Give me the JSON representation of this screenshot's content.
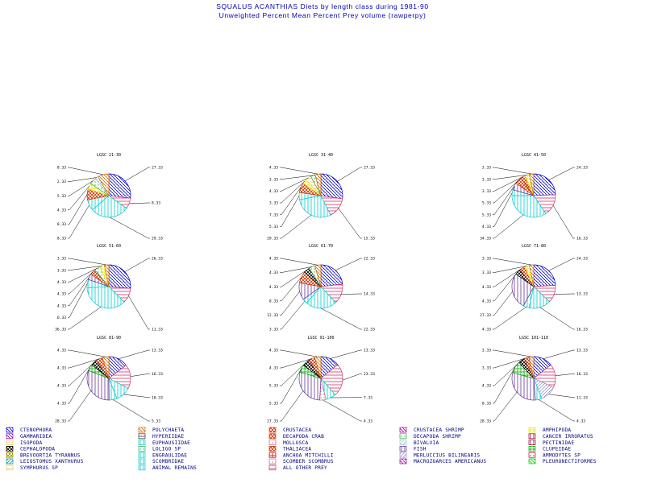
{
  "title": "SQUALUS ACANTHIAS Diets by length class during 1981-90",
  "subtitle": "Unweighted Percent Mean Percent Prey  volume (rawperpy)",
  "legend": [
    {
      "name": "CTENOPHORA",
      "color": "#0000cc"
    },
    {
      "name": "POLYCHAETA",
      "color": "#cc6600"
    },
    {
      "name": "CRUSTACEA",
      "color": "#cc3300"
    },
    {
      "name": "CRUSTACEA SHRIMP",
      "color": "#990099"
    },
    {
      "name": "AMPHIPODA",
      "color": "#e6e600"
    },
    {
      "name": "GAMMARIDEA",
      "color": "#990099"
    },
    {
      "name": "HYPERIIDAE",
      "color": "#333333"
    },
    {
      "name": "DECAPODA CRAB",
      "color": "#cc3300"
    },
    {
      "name": "DECAPODA SHRIMP",
      "color": "#33aa33"
    },
    {
      "name": "CANCER IRRORATUS",
      "color": "#990033"
    },
    {
      "name": "ISOPODA",
      "color": "#e6cc66"
    },
    {
      "name": "EUPHAUSIIDAE",
      "color": "#00cccc"
    },
    {
      "name": "MOLLUSCA",
      "color": "#cc6699"
    },
    {
      "name": "BIVALVIA",
      "color": "#99cccc"
    },
    {
      "name": "PECTINIDAE",
      "color": "#990033"
    },
    {
      "name": "CEPHALOPODA",
      "color": "#000000"
    },
    {
      "name": "LOLIGO SP",
      "color": "#33aa33"
    },
    {
      "name": "THALIACEA",
      "color": "#cc3300"
    },
    {
      "name": "FISH",
      "color": "#663399"
    },
    {
      "name": "CLUPEIDAE",
      "color": "#00aa00"
    },
    {
      "name": "BREVOORTIA TYRANNUS",
      "color": "#999900"
    },
    {
      "name": "ENGRAULIDAE",
      "color": "#00cccc"
    },
    {
      "name": "ANCHOA MITCHILLI",
      "color": "#cc0000"
    },
    {
      "name": "MERLUCCIUS BILINEARIS",
      "color": "#9999cc"
    },
    {
      "name": "AMMODYTES SP",
      "color": "#cc0033"
    },
    {
      "name": "LEIOSTOMUS XANTHURUS",
      "color": "#009999"
    },
    {
      "name": "SCOMBRIDAE",
      "color": "#00cccc"
    },
    {
      "name": "SCOMBER SCOMBRUS",
      "color": "#cc6699"
    },
    {
      "name": "MACROZOARCES AMERICANUS",
      "color": "#990099"
    },
    {
      "name": "PLEURONECTIFORMES",
      "color": "#00cc00"
    },
    {
      "name": "SYMPHURUS SP",
      "color": "#e6cc66"
    },
    {
      "name": "ANIMAL REMAINS",
      "color": "#00cccc"
    },
    {
      "name": "ALL OTHER PREY",
      "color": "#cc3366"
    }
  ],
  "chart_data": [
    {
      "type": "pie",
      "title": "LGSC 21-30",
      "slices": [
        {
          "name": "CTENOPHORA",
          "value": 27.33,
          "label": "27.33",
          "color": "#0000cc"
        },
        {
          "name": "ALL OTHER PREY",
          "value": 8.33,
          "label": "8.33",
          "color": "#cc3366"
        },
        {
          "name": "ANIMAL REMAINS",
          "value": 29.33,
          "label": "29.33",
          "color": "#00cccc"
        },
        {
          "name": "EUPHAUSIIDAE",
          "value": 8.33,
          "label": "8.33",
          "color": "#00cccc"
        },
        {
          "name": "CRUSTACEA",
          "value": 8.33,
          "label": "8.33",
          "color": "#cc3300"
        },
        {
          "name": "AMPHIPODA",
          "value": 4.33,
          "label": "4.33",
          "color": "#e6e600"
        },
        {
          "name": "LOLIGO SP",
          "value": 5.33,
          "label": "5.33",
          "color": "#33aa33"
        },
        {
          "name": "BIVALVIA",
          "value": 2.33,
          "label": "2.33",
          "color": "#99cccc"
        },
        {
          "name": "POLYCHAETA",
          "value": 8.33,
          "label": "8.33",
          "color": "#cc6600"
        }
      ]
    },
    {
      "type": "pie",
      "title": "LGSC 31-40",
      "slices": [
        {
          "name": "CTENOPHORA",
          "value": 27.33,
          "label": "27.33",
          "color": "#0000cc"
        },
        {
          "name": "ALL OTHER PREY",
          "value": 15.33,
          "label": "15.33",
          "color": "#cc3366"
        },
        {
          "name": "ANIMAL REMAINS",
          "value": 29.33,
          "label": "29.33",
          "color": "#00cccc"
        },
        {
          "name": "EUPHAUSIIDAE",
          "value": 5.33,
          "label": "5.33",
          "color": "#00cccc"
        },
        {
          "name": "CRUSTACEA",
          "value": 7.33,
          "label": "7.33",
          "color": "#cc3300"
        },
        {
          "name": "AMPHIPODA",
          "value": 3.33,
          "label": "3.33",
          "color": "#e6e600"
        },
        {
          "name": "ISOPODA",
          "value": 4.33,
          "label": "4.33",
          "color": "#e6cc66"
        },
        {
          "name": "LOLIGO SP",
          "value": 3.33,
          "label": "3.33",
          "color": "#33aa33"
        },
        {
          "name": "POLYCHAETA",
          "value": 4.33,
          "label": "4.33",
          "color": "#cc6600"
        }
      ]
    },
    {
      "type": "pie",
      "title": "LGSC 41-50",
      "slices": [
        {
          "name": "CTENOPHORA",
          "value": 24.33,
          "label": "24.33",
          "color": "#0000cc"
        },
        {
          "name": "ALL OTHER PREY",
          "value": 16.33,
          "label": "16.33",
          "color": "#cc3366"
        },
        {
          "name": "ANIMAL REMAINS",
          "value": 34.33,
          "label": "34.33",
          "color": "#00cccc"
        },
        {
          "name": "EUPHAUSIIDAE",
          "value": 4.33,
          "label": "4.33",
          "color": "#00cccc"
        },
        {
          "name": "FISH",
          "value": 5.33,
          "label": "5.33",
          "color": "#663399"
        },
        {
          "name": "CRUSTACEA",
          "value": 5.33,
          "label": "5.33",
          "color": "#cc3300"
        },
        {
          "name": "DECAPODA CRAB",
          "value": 3.33,
          "label": "3.33",
          "color": "#cc3300"
        },
        {
          "name": "AMPHIPODA",
          "value": 3.33,
          "label": "3.33",
          "color": "#e6e600"
        },
        {
          "name": "POLYCHAETA",
          "value": 3.33,
          "label": "3.33",
          "color": "#cc6600"
        }
      ]
    },
    {
      "type": "pie",
      "title": "LGSC 51-60",
      "slices": [
        {
          "name": "CTENOPHORA",
          "value": 26.33,
          "label": "26.33",
          "color": "#0000cc"
        },
        {
          "name": "ALL OTHER PREY",
          "value": 11.33,
          "label": "11.33",
          "color": "#cc3366"
        },
        {
          "name": "ANIMAL REMAINS",
          "value": 36.33,
          "label": "36.33",
          "color": "#00cccc"
        },
        {
          "name": "EUPHAUSIIDAE",
          "value": 6.33,
          "label": "6.33",
          "color": "#00cccc"
        },
        {
          "name": "FISH",
          "value": 4.33,
          "label": "4.33",
          "color": "#663399"
        },
        {
          "name": "CRUSTACEA",
          "value": 4.33,
          "label": "4.33",
          "color": "#cc3300"
        },
        {
          "name": "LOLIGO SP",
          "value": 4.33,
          "label": "4.33",
          "color": "#33aa33"
        },
        {
          "name": "AMPHIPODA",
          "value": 3.33,
          "label": "3.33",
          "color": "#e6e600"
        },
        {
          "name": "POLYCHAETA",
          "value": 3.33,
          "label": "3.33",
          "color": "#cc6600"
        }
      ]
    },
    {
      "type": "pie",
      "title": "LGSC 61-70",
      "slices": [
        {
          "name": "CTENOPHORA",
          "value": 22.33,
          "label": "22.33",
          "color": "#0000cc"
        },
        {
          "name": "ALL OTHER PREY",
          "value": 14.33,
          "label": "14.33",
          "color": "#cc3366"
        },
        {
          "name": "ANIMAL REMAINS",
          "value": 22.33,
          "label": "22.33",
          "color": "#00cccc"
        },
        {
          "name": "EUPHAUSIIDAE",
          "value": 3.33,
          "label": "3.33",
          "color": "#00cccc"
        },
        {
          "name": "FISH",
          "value": 12.33,
          "label": "12.33",
          "color": "#663399"
        },
        {
          "name": "CRUSTACEA",
          "value": 8.33,
          "label": "8.33",
          "color": "#cc3300"
        },
        {
          "name": "CEPHALOPODA",
          "value": 4.33,
          "label": "4.33",
          "color": "#000000"
        },
        {
          "name": "LOLIGO SP",
          "value": 4.33,
          "label": "4.33",
          "color": "#33aa33"
        },
        {
          "name": "POLYCHAETA",
          "value": 4.33,
          "label": "4.33",
          "color": "#cc6600"
        }
      ]
    },
    {
      "type": "pie",
      "title": "LGSC 71-80",
      "slices": [
        {
          "name": "CTENOPHORA",
          "value": 24.33,
          "label": "24.33",
          "color": "#0000cc"
        },
        {
          "name": "ALL OTHER PREY",
          "value": 13.33,
          "label": "13.33",
          "color": "#cc3366"
        },
        {
          "name": "ANIMAL REMAINS",
          "value": 16.33,
          "label": "16.33",
          "color": "#00cccc"
        },
        {
          "name": "SCOMBRIDAE",
          "value": 4.33,
          "label": "4.33",
          "color": "#00cccc"
        },
        {
          "name": "FISH",
          "value": 27.33,
          "label": "27.33",
          "color": "#663399"
        },
        {
          "name": "CEPHALOPODA",
          "value": 4.33,
          "label": "4.33",
          "color": "#000000"
        },
        {
          "name": "CRUSTACEA",
          "value": 4.33,
          "label": "4.33",
          "color": "#cc3300"
        },
        {
          "name": "AMPHIPODA",
          "value": 3.33,
          "label": "3.33",
          "color": "#e6e600"
        },
        {
          "name": "POLYCHAETA",
          "value": 3.33,
          "label": "3.33",
          "color": "#cc6600"
        }
      ]
    },
    {
      "type": "pie",
      "title": "LGSC 81-90",
      "slices": [
        {
          "name": "CTENOPHORA",
          "value": 13.33,
          "label": "13.33",
          "color": "#0000cc"
        },
        {
          "name": "ALL OTHER PREY",
          "value": 16.33,
          "label": "16.33",
          "color": "#cc3366"
        },
        {
          "name": "ANIMAL REMAINS",
          "value": 10.33,
          "label": "10.33",
          "color": "#00cccc"
        },
        {
          "name": "SCOMBRIDAE",
          "value": 5.33,
          "label": "5.33",
          "color": "#00cccc"
        },
        {
          "name": "FISH",
          "value": 28.33,
          "label": "28.33",
          "color": "#663399"
        },
        {
          "name": "CLUPEIDAE",
          "value": 4.33,
          "label": "4.33",
          "color": "#00aa00"
        },
        {
          "name": "CEPHALOPODA",
          "value": 4.33,
          "label": "4.33",
          "color": "#000000"
        },
        {
          "name": "CRUSTACEA",
          "value": 4.33,
          "label": "4.33",
          "color": "#cc3300"
        },
        {
          "name": "POLYCHAETA",
          "value": 4.33,
          "label": "4.33",
          "color": "#cc6600"
        }
      ]
    },
    {
      "type": "pie",
      "title": "LGSC 91-100",
      "slices": [
        {
          "name": "CTENOPHORA",
          "value": 13.33,
          "label": "13.33",
          "color": "#0000cc"
        },
        {
          "name": "ALL OTHER PREY",
          "value": 23.33,
          "label": "23.33",
          "color": "#cc3366"
        },
        {
          "name": "ANIMAL REMAINS",
          "value": 7.33,
          "label": "7.33",
          "color": "#00cccc"
        },
        {
          "name": "SCOMBER SCOMBRUS",
          "value": 4.33,
          "label": "4.33",
          "color": "#cc6699"
        },
        {
          "name": "FISH",
          "value": 27.33,
          "label": "27.33",
          "color": "#663399"
        },
        {
          "name": "CLUPEIDAE",
          "value": 5.33,
          "label": "5.33",
          "color": "#00aa00"
        },
        {
          "name": "CEPHALOPODA",
          "value": 5.33,
          "label": "5.33",
          "color": "#000000"
        },
        {
          "name": "CRUSTACEA",
          "value": 4.33,
          "label": "4.33",
          "color": "#cc3300"
        },
        {
          "name": "POLYCHAETA",
          "value": 4.33,
          "label": "4.33",
          "color": "#cc6600"
        }
      ]
    },
    {
      "type": "pie",
      "title": "LGSC 101-110",
      "slices": [
        {
          "name": "CTENOPHORA",
          "value": 13.33,
          "label": "13.33",
          "color": "#0000cc"
        },
        {
          "name": "ALL OTHER PREY",
          "value": 16.33,
          "label": "16.33",
          "color": "#cc3366"
        },
        {
          "name": "MERLUCCIUS BILINEARIS",
          "value": 11.33,
          "label": "11.33",
          "color": "#9999cc"
        },
        {
          "name": "ANIMAL REMAINS",
          "value": 4.33,
          "label": "4.33",
          "color": "#00cccc"
        },
        {
          "name": "FISH",
          "value": 28.33,
          "label": "28.33",
          "color": "#663399"
        },
        {
          "name": "CLUPEIDAE",
          "value": 8.33,
          "label": "8.33",
          "color": "#00aa00"
        },
        {
          "name": "CEPHALOPODA",
          "value": 4.33,
          "label": "4.33",
          "color": "#000000"
        },
        {
          "name": "CRUSTACEA",
          "value": 3.33,
          "label": "3.33",
          "color": "#cc3300"
        },
        {
          "name": "POLYCHAETA",
          "value": 3.33,
          "label": "3.33",
          "color": "#cc6600"
        }
      ]
    }
  ]
}
